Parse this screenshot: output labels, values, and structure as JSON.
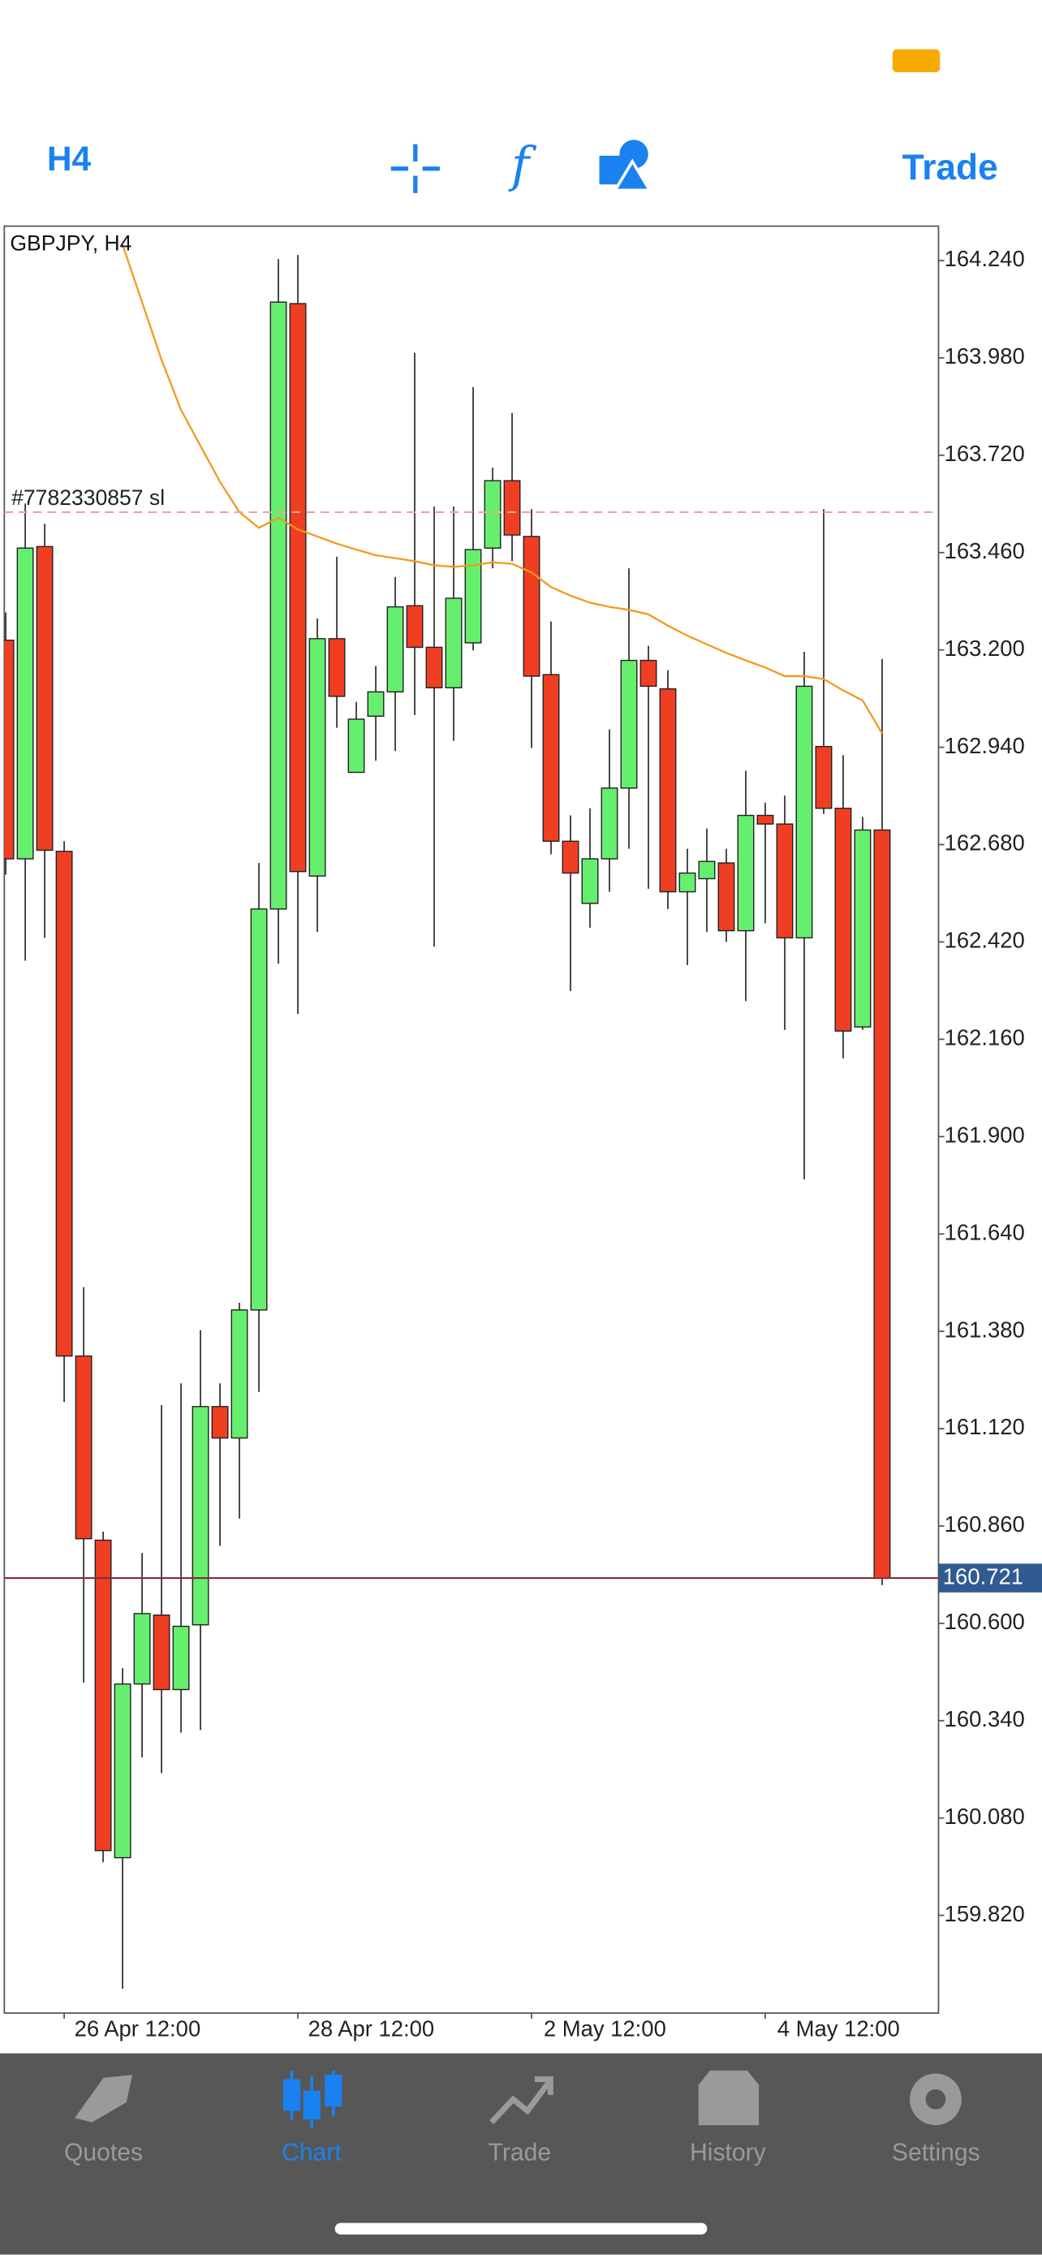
{
  "toolbar": {
    "timeframe": "H4",
    "trade": "Trade"
  },
  "tab_bar": {
    "tabs": [
      "Quotes",
      "Chart",
      "Trade",
      "History",
      "Settings"
    ],
    "active": 1
  },
  "chart_data": {
    "type": "candlestick",
    "title": "GBPJPY, H4",
    "categories": [
      null,
      null,
      null,
      "26 Apr 12:00",
      null,
      null,
      null,
      null,
      null,
      null,
      null,
      null,
      null,
      null,
      null,
      "28 Apr 12:00",
      null,
      null,
      null,
      null,
      null,
      null,
      null,
      null,
      null,
      null,
      null,
      "2 May 12:00",
      null,
      null,
      null,
      null,
      null,
      null,
      null,
      null,
      null,
      null,
      null,
      "4 May 12:00",
      null,
      null,
      null,
      null,
      null,
      null
    ],
    "open": [
      163.226,
      162.642,
      163.476,
      162.662,
      161.314,
      160.822,
      159.974,
      160.438,
      160.622,
      160.423,
      160.596,
      161.179,
      161.095,
      161.437,
      162.508,
      164.125,
      162.596,
      163.23,
      162.873,
      163.023,
      163.088,
      163.318,
      163.207,
      163.099,
      163.219,
      163.472,
      163.652,
      163.503,
      163.134,
      162.689,
      162.523,
      162.642,
      162.831,
      163.172,
      163.096,
      162.554,
      162.589,
      162.631,
      162.45,
      162.758,
      162.735,
      162.431,
      162.942,
      162.777,
      162.193,
      162.719
    ],
    "high": [
      163.3,
      163.591,
      163.537,
      162.689,
      161.498,
      160.845,
      160.48,
      160.788,
      161.183,
      161.241,
      161.383,
      161.241,
      161.456,
      162.631,
      164.244,
      164.255,
      163.284,
      163.449,
      163.061,
      163.157,
      163.395,
      163.994,
      163.583,
      163.583,
      163.902,
      163.687,
      163.833,
      163.576,
      163.276,
      162.758,
      162.777,
      162.988,
      163.418,
      163.211,
      163.146,
      162.669,
      162.723,
      162.669,
      162.877,
      162.792,
      162.811,
      163.195,
      163.576,
      162.919,
      162.754,
      163.176
    ],
    "low": [
      162.6,
      162.37,
      162.431,
      161.191,
      160.442,
      159.962,
      159.624,
      160.242,
      160.2,
      160.308,
      160.315,
      160.807,
      160.88,
      161.218,
      162.362,
      162.228,
      162.447,
      162.992,
      162.873,
      162.904,
      162.93,
      163.026,
      162.408,
      162.957,
      163.199,
      163.418,
      163.437,
      162.938,
      162.654,
      162.289,
      162.458,
      162.554,
      162.669,
      162.562,
      162.508,
      162.358,
      162.447,
      162.42,
      162.262,
      162.47,
      162.185,
      161.786,
      162.762,
      162.109,
      162.185,
      160.702
    ],
    "close": [
      162.642,
      163.472,
      162.665,
      161.314,
      160.826,
      159.993,
      160.438,
      160.626,
      160.423,
      160.592,
      161.179,
      161.095,
      161.437,
      162.508,
      164.129,
      162.608,
      163.23,
      163.076,
      163.015,
      163.088,
      163.315,
      163.207,
      163.099,
      163.338,
      163.468,
      163.652,
      163.507,
      163.13,
      162.689,
      162.604,
      162.642,
      162.831,
      163.172,
      163.103,
      162.554,
      162.604,
      162.635,
      162.45,
      162.758,
      162.735,
      162.431,
      163.103,
      162.777,
      162.182,
      162.719,
      160.721
    ],
    "up_color": "#66ee6e",
    "down_color": "#f03e22",
    "moving_average": {
      "color": "#f29a1e",
      "values": [
        null,
        null,
        null,
        null,
        null,
        null,
        164.282,
        164.129,
        163.975,
        163.841,
        163.745,
        163.649,
        163.568,
        163.526,
        163.553,
        163.522,
        163.503,
        163.484,
        163.468,
        163.453,
        163.445,
        163.437,
        163.426,
        163.422,
        163.426,
        163.434,
        163.43,
        163.407,
        163.368,
        163.345,
        163.326,
        163.315,
        163.307,
        163.295,
        163.265,
        163.238,
        163.215,
        163.192,
        163.172,
        163.153,
        163.13,
        163.13,
        163.122,
        163.092,
        163.065,
        162.977
      ]
    },
    "sl_label": "#7782330857 sl",
    "sl_price": 163.568,
    "current_price": 160.721,
    "ylim": [
      159.559,
      164.332
    ],
    "yticks": [
      {
        "value": 164.24,
        "label": "164.240"
      },
      {
        "value": 163.98,
        "label": "163.980"
      },
      {
        "value": 163.72,
        "label": "163.720"
      },
      {
        "value": 163.46,
        "label": "163.460"
      },
      {
        "value": 163.2,
        "label": "163.200"
      },
      {
        "value": 162.94,
        "label": "162.940"
      },
      {
        "value": 162.68,
        "label": "162.680"
      },
      {
        "value": 162.42,
        "label": "162.420"
      },
      {
        "value": 162.16,
        "label": "162.160"
      },
      {
        "value": 161.9,
        "label": "161.900"
      },
      {
        "value": 161.64,
        "label": "161.640"
      },
      {
        "value": 161.38,
        "label": "161.380"
      },
      {
        "value": 161.12,
        "label": "161.120"
      },
      {
        "value": 160.86,
        "label": "160.860"
      },
      {
        "value": 160.6,
        "label": "160.600"
      },
      {
        "value": 160.34,
        "label": "160.340"
      },
      {
        "value": 160.08,
        "label": "160.080"
      },
      {
        "value": 159.82,
        "label": "159.820"
      }
    ]
  }
}
